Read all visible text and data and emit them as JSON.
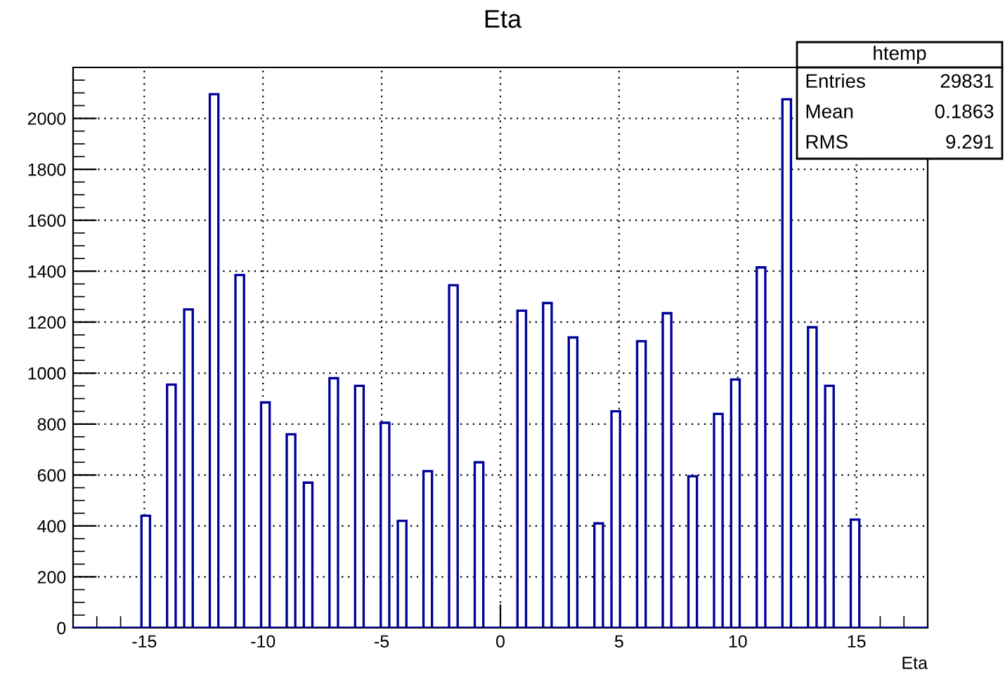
{
  "chart_data": {
    "type": "histogram",
    "title": "Eta",
    "xlabel": "Eta",
    "bins": [
      -18,
      -17.64,
      -17.28,
      -16.92,
      -16.56,
      -16.2,
      -15.84,
      -15.48,
      -15.12,
      -14.76,
      -14.4,
      -14.04,
      -13.68,
      -13.32,
      -12.96,
      -12.6,
      -12.24,
      -11.88,
      -11.52,
      -11.16,
      -10.8,
      -10.44,
      -10.08,
      -9.72,
      -9.36,
      -9,
      -8.64,
      -8.28,
      -7.92,
      -7.56,
      -7.2,
      -6.84,
      -6.48,
      -6.12,
      -5.76,
      -5.4,
      -5.04,
      -4.68,
      -4.32,
      -3.96,
      -3.6,
      -3.24,
      -2.88,
      -2.52,
      -2.16,
      -1.8,
      -1.44,
      -1.08,
      -0.72,
      -0.36,
      0,
      0.36,
      0.72,
      1.08,
      1.44,
      1.8,
      2.16,
      2.52,
      2.88,
      3.24,
      3.6,
      3.96,
      4.32,
      4.68,
      5.04,
      5.4,
      5.76,
      6.12,
      6.48,
      6.84,
      7.2,
      7.56,
      7.92,
      8.28,
      8.64,
      9,
      9.36,
      9.72,
      10.08,
      10.44,
      10.8,
      11.16,
      11.52,
      11.88,
      12.24,
      12.6,
      12.96,
      13.32,
      13.68,
      14.04,
      14.4,
      14.76,
      15.12,
      15.48,
      15.84,
      16.2,
      16.56,
      16.92,
      17.28,
      17.64,
      18
    ],
    "values": [
      0,
      0,
      0,
      0,
      0,
      0,
      0,
      0,
      440,
      0,
      0,
      955,
      0,
      1250,
      0,
      0,
      2095,
      0,
      0,
      1385,
      0,
      0,
      885,
      0,
      0,
      760,
      0,
      570,
      0,
      0,
      980,
      0,
      0,
      950,
      0,
      0,
      805,
      0,
      420,
      0,
      0,
      615,
      0,
      0,
      1345,
      0,
      0,
      650,
      0,
      0,
      0,
      0,
      1245,
      0,
      0,
      1275,
      0,
      0,
      1140,
      0,
      0,
      410,
      0,
      850,
      0,
      0,
      1125,
      0,
      0,
      1235,
      0,
      0,
      595,
      0,
      0,
      840,
      0,
      975,
      0,
      0,
      1415,
      0,
      0,
      2075,
      0,
      0,
      1180,
      0,
      950,
      0,
      0,
      425,
      0,
      0,
      0,
      0,
      0,
      0,
      0,
      0
    ],
    "color": "#000099",
    "xlim": [
      -18,
      18
    ],
    "xticks": [
      -15,
      -10,
      -5,
      0,
      5,
      10,
      15
    ],
    "ylim": [
      0,
      2200
    ],
    "yticks": [
      0,
      200,
      400,
      600,
      800,
      1000,
      1200,
      1400,
      1600,
      1800,
      2000
    ],
    "grid": true,
    "annotations": [
      "htemp",
      "Entries",
      "29831",
      "Mean",
      "0.1863",
      "RMS",
      "9.291"
    ]
  }
}
